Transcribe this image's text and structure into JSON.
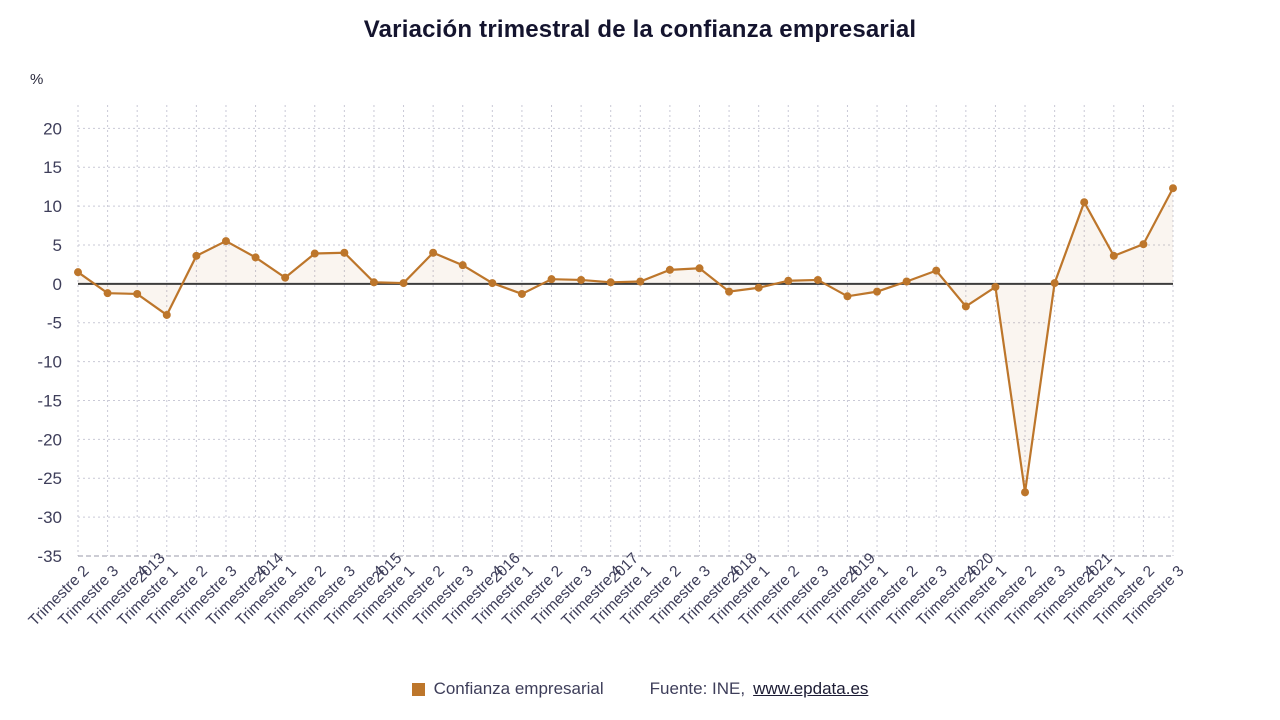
{
  "title": "Variación trimestral de la confianza empresarial",
  "y_axis_unit": "%",
  "legend": {
    "series_label": "Confianza empresarial",
    "source_prefix": "Fuente: INE,",
    "source_link": "www.epdata.es"
  },
  "colors": {
    "series": "#bd762b",
    "area_fill": "#bd762b",
    "zero_line": "#3d3d3d",
    "grid": "#c9c9d6",
    "axis_bottom": "#9a9aaa",
    "text": "#3e3e5a",
    "title": "#14142e"
  },
  "chart_data": {
    "type": "line",
    "title": "Variación trimestral de la confianza empresarial",
    "xlabel": "",
    "ylabel": "%",
    "ylim": [
      -35,
      23
    ],
    "yticks": [
      20,
      15,
      10,
      5,
      0,
      -5,
      -10,
      -15,
      -20,
      -25,
      -30,
      -35
    ],
    "grid": true,
    "legend_position": "bottom",
    "x_labels": [
      "Trimestre 2",
      "Trimestre 3",
      "Trimestre 4",
      "2013|Trimestre 1",
      "Trimestre 2",
      "Trimestre 3",
      "Trimestre 4",
      "2014|Trimestre 1",
      "Trimestre 2",
      "Trimestre 3",
      "Trimestre 4",
      "2015|Trimestre 1",
      "Trimestre 2",
      "Trimestre 3",
      "Trimestre 4",
      "2016|Trimestre 1",
      "Trimestre 2",
      "Trimestre 3",
      "Trimestre 4",
      "2017|Trimestre 1",
      "Trimestre 2",
      "Trimestre 3",
      "Trimestre 4",
      "2018|Trimestre 1",
      "Trimestre 2",
      "Trimestre 3",
      "Trimestre 4",
      "2019|Trimestre 1",
      "Trimestre 2",
      "Trimestre 3",
      "Trimestre 4",
      "2020|Trimestre 1",
      "Trimestre 2",
      "Trimestre 3",
      "Trimestre 4",
      "2021|Trimestre 1",
      "Trimestre 2",
      "Trimestre 3"
    ],
    "series": [
      {
        "name": "Confianza empresarial",
        "color": "#bd762b",
        "values": [
          1.5,
          -1.2,
          -1.3,
          -4.0,
          3.6,
          5.5,
          3.4,
          0.8,
          3.9,
          4.0,
          0.2,
          0.1,
          4.0,
          2.4,
          0.1,
          -1.3,
          0.6,
          0.5,
          0.2,
          0.3,
          1.8,
          2.0,
          -1.0,
          -0.5,
          0.4,
          0.5,
          -1.6,
          -1.0,
          0.3,
          1.7,
          -2.9,
          -0.4,
          -26.8,
          0.1,
          10.5,
          3.6,
          5.1,
          12.3
        ]
      }
    ]
  }
}
